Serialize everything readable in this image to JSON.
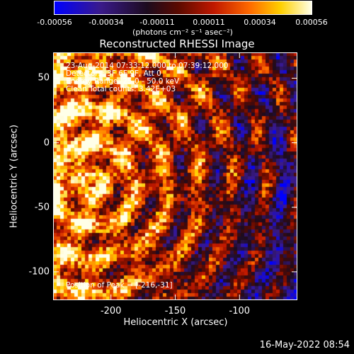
{
  "colorbar": {
    "ticks": [
      "-0.00056",
      "-0.00034",
      "-0.00011",
      "0.00011",
      "0.00034",
      "0.00056"
    ],
    "unit_label": "(photons cm⁻² s⁻¹ asec⁻²)"
  },
  "annotations": {
    "time_range": "23-Aug-2014 07:33:12.000 to 07:39:12.000",
    "detectors": "Detectors: 3F 6F 9F, Att 0",
    "energy_range": "Energy Range: 25.0 - 50.0 keV",
    "clean_counts": "Clean     Total counts: 3.42E+03",
    "peak_position": "Position of Peak = [-216,-31]"
  },
  "timestamp": "16-May-2022 08:54",
  "colors": {
    "background": "#000000",
    "frame": "#ffffff"
  },
  "chart_data": {
    "type": "heatmap",
    "title": "Reconstructed RHESSI Image",
    "xlabel": "Heliocentric X (arcsec)",
    "ylabel": "Heliocentric Y (arcsec)",
    "xlim": [
      -245,
      -55
    ],
    "ylim": [
      -122,
      70
    ],
    "xticks": [
      -200,
      -150,
      -100
    ],
    "yticks": [
      50,
      0,
      -50,
      -100
    ],
    "colorbar_range": [
      -0.00056,
      0.00056
    ],
    "colormap": "blue-purple-red-yellow-white",
    "peak": [
      -216,
      -31
    ],
    "grid": false
  }
}
